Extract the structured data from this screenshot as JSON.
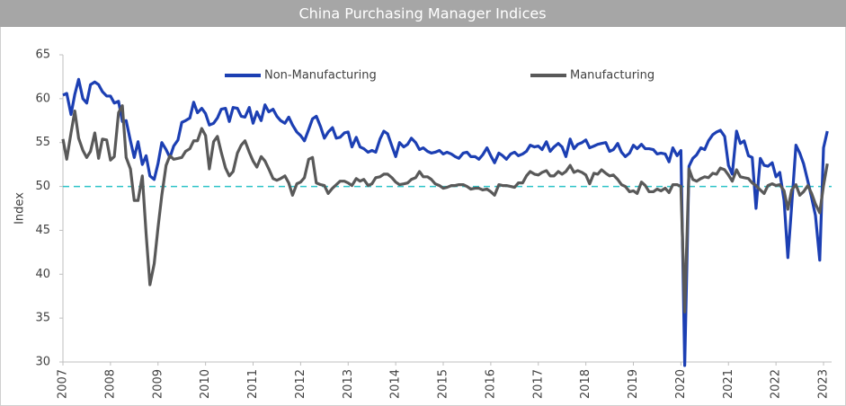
{
  "chart_data": {
    "type": "line",
    "title": "China Purchasing Manager Indices",
    "y_label": "Index",
    "xlim": [
      2007,
      2023.17
    ],
    "xticks": [
      2007,
      2008,
      2009,
      2010,
      2011,
      2012,
      2013,
      2014,
      2015,
      2016,
      2017,
      2018,
      2019,
      2020,
      2021,
      2022,
      2023
    ],
    "ylim": [
      30,
      65
    ],
    "yticks": [
      30,
      35,
      40,
      45,
      50,
      55,
      60,
      65
    ],
    "grid": false,
    "legend": "top",
    "reference_line": {
      "value": 50,
      "color": "#2ec4c8"
    },
    "x": [
      2007,
      2007.08,
      2007.17,
      2007.25,
      2007.33,
      2007.42,
      2007.5,
      2007.58,
      2007.67,
      2007.75,
      2007.83,
      2007.92,
      2008,
      2008.08,
      2008.17,
      2008.25,
      2008.33,
      2008.42,
      2008.5,
      2008.58,
      2008.67,
      2008.75,
      2008.83,
      2008.92,
      2009,
      2009.08,
      2009.17,
      2009.25,
      2009.33,
      2009.42,
      2009.5,
      2009.58,
      2009.67,
      2009.75,
      2009.83,
      2009.92,
      2010,
      2010.08,
      2010.17,
      2010.25,
      2010.33,
      2010.42,
      2010.5,
      2010.58,
      2010.67,
      2010.75,
      2010.83,
      2010.92,
      2011,
      2011.08,
      2011.17,
      2011.25,
      2011.33,
      2011.42,
      2011.5,
      2011.58,
      2011.67,
      2011.75,
      2011.83,
      2011.92,
      2012,
      2012.08,
      2012.17,
      2012.25,
      2012.33,
      2012.42,
      2012.5,
      2012.58,
      2012.67,
      2012.75,
      2012.83,
      2012.92,
      2013,
      2013.08,
      2013.17,
      2013.25,
      2013.33,
      2013.42,
      2013.5,
      2013.58,
      2013.67,
      2013.75,
      2013.83,
      2013.92,
      2014,
      2014.08,
      2014.17,
      2014.25,
      2014.33,
      2014.42,
      2014.5,
      2014.58,
      2014.67,
      2014.75,
      2014.83,
      2014.92,
      2015,
      2015.08,
      2015.17,
      2015.25,
      2015.33,
      2015.42,
      2015.5,
      2015.58,
      2015.67,
      2015.75,
      2015.83,
      2015.92,
      2016,
      2016.08,
      2016.17,
      2016.25,
      2016.33,
      2016.42,
      2016.5,
      2016.58,
      2016.67,
      2016.75,
      2016.83,
      2016.92,
      2017,
      2017.08,
      2017.17,
      2017.25,
      2017.33,
      2017.42,
      2017.5,
      2017.58,
      2017.67,
      2017.75,
      2017.83,
      2017.92,
      2018,
      2018.08,
      2018.17,
      2018.25,
      2018.33,
      2018.42,
      2018.5,
      2018.58,
      2018.67,
      2018.75,
      2018.83,
      2018.92,
      2019,
      2019.08,
      2019.17,
      2019.25,
      2019.33,
      2019.42,
      2019.5,
      2019.58,
      2019.67,
      2019.75,
      2019.83,
      2019.92,
      2020,
      2020.08,
      2020.17,
      2020.25,
      2020.33,
      2020.42,
      2020.5,
      2020.58,
      2020.67,
      2020.75,
      2020.83,
      2020.92,
      2021,
      2021.08,
      2021.17,
      2021.25,
      2021.33,
      2021.42,
      2021.5,
      2021.58,
      2021.67,
      2021.75,
      2021.83,
      2021.92,
      2022,
      2022.08,
      2022.17,
      2022.25,
      2022.33,
      2022.42,
      2022.5,
      2022.58,
      2022.67,
      2022.75,
      2022.83,
      2022.92,
      2023,
      2023.08
    ],
    "series": [
      {
        "name": "Non-Manufacturing",
        "color": "#1c3fb3",
        "values": [
          60.4,
          60.6,
          58.2,
          60.5,
          62.2,
          60.0,
          59.5,
          61.6,
          61.9,
          61.6,
          60.8,
          60.3,
          60.3,
          59.5,
          59.7,
          57.4,
          57.5,
          55.2,
          53.3,
          55.1,
          52.5,
          53.5,
          51.2,
          50.8,
          52.6,
          55.0,
          54.2,
          53.3,
          54.6,
          55.3,
          57.3,
          57.5,
          57.8,
          59.6,
          58.4,
          58.9,
          58.3,
          57.0,
          57.2,
          57.8,
          58.8,
          58.9,
          57.4,
          59.0,
          58.9,
          58.0,
          57.9,
          59.0,
          57.2,
          58.5,
          57.5,
          59.3,
          58.5,
          58.8,
          58.0,
          57.5,
          57.2,
          57.9,
          57.0,
          56.2,
          55.8,
          55.2,
          56.5,
          57.7,
          58.0,
          56.8,
          55.5,
          56.2,
          56.7,
          55.5,
          55.6,
          56.1,
          56.2,
          54.5,
          55.6,
          54.5,
          54.3,
          53.9,
          54.1,
          53.9,
          55.4,
          56.3,
          56.0,
          54.6,
          53.4,
          55.0,
          54.5,
          54.8,
          55.5,
          55.0,
          54.2,
          54.4,
          54.0,
          53.8,
          53.9,
          54.1,
          53.7,
          53.9,
          53.7,
          53.4,
          53.2,
          53.8,
          53.9,
          53.4,
          53.4,
          53.1,
          53.6,
          54.4,
          53.5,
          52.7,
          53.8,
          53.5,
          53.1,
          53.7,
          53.9,
          53.5,
          53.7,
          54.0,
          54.7,
          54.5,
          54.6,
          54.2,
          55.1,
          54.0,
          54.5,
          54.9,
          54.5,
          53.4,
          55.4,
          54.3,
          54.8,
          55.0,
          55.3,
          54.4,
          54.6,
          54.8,
          54.9,
          55.0,
          54.0,
          54.2,
          54.9,
          53.9,
          53.4,
          53.8,
          54.7,
          54.3,
          54.8,
          54.3,
          54.3,
          54.2,
          53.7,
          53.8,
          53.7,
          52.8,
          54.4,
          53.5,
          54.1,
          29.6,
          52.3,
          53.2,
          53.6,
          54.4,
          54.2,
          55.2,
          55.9,
          56.2,
          56.4,
          55.7,
          52.4,
          51.4,
          56.3,
          54.9,
          55.2,
          53.5,
          53.3,
          47.5,
          53.2,
          52.4,
          52.3,
          52.7,
          51.1,
          51.6,
          48.4,
          41.9,
          47.8,
          54.7,
          53.8,
          52.6,
          50.6,
          48.7,
          46.7,
          41.6,
          54.4,
          56.3
        ]
      },
      {
        "name": "Manufacturing",
        "color": "#595959",
        "values": [
          55.4,
          53.1,
          56.1,
          58.6,
          55.5,
          54.1,
          53.3,
          54.0,
          56.1,
          53.2,
          55.4,
          55.3,
          53.0,
          53.4,
          58.4,
          59.2,
          53.3,
          52.0,
          48.4,
          48.4,
          51.2,
          44.6,
          38.8,
          41.2,
          45.3,
          49.0,
          52.4,
          53.5,
          53.1,
          53.2,
          53.3,
          54.0,
          54.3,
          55.2,
          55.2,
          56.6,
          55.8,
          52.0,
          55.1,
          55.7,
          53.9,
          52.1,
          51.2,
          51.7,
          53.8,
          54.7,
          55.2,
          53.9,
          52.9,
          52.2,
          53.4,
          52.9,
          52.0,
          50.9,
          50.7,
          50.9,
          51.2,
          50.4,
          49.0,
          50.3,
          50.5,
          51.0,
          53.1,
          53.3,
          50.4,
          50.2,
          50.1,
          49.2,
          49.8,
          50.2,
          50.6,
          50.6,
          50.4,
          50.1,
          50.9,
          50.6,
          50.8,
          50.1,
          50.3,
          51.0,
          51.1,
          51.4,
          51.4,
          51.0,
          50.5,
          50.2,
          50.3,
          50.4,
          50.8,
          51.0,
          51.7,
          51.1,
          51.1,
          50.8,
          50.3,
          50.1,
          49.8,
          49.9,
          50.1,
          50.1,
          50.2,
          50.2,
          50.0,
          49.7,
          49.8,
          49.8,
          49.6,
          49.7,
          49.4,
          49.0,
          50.2,
          50.1,
          50.1,
          50.0,
          49.9,
          50.4,
          50.4,
          51.2,
          51.7,
          51.4,
          51.3,
          51.6,
          51.8,
          51.2,
          51.2,
          51.7,
          51.4,
          51.7,
          52.4,
          51.6,
          51.8,
          51.6,
          51.3,
          50.3,
          51.5,
          51.4,
          51.9,
          51.5,
          51.2,
          51.3,
          50.8,
          50.2,
          50.0,
          49.4,
          49.5,
          49.2,
          50.5,
          50.1,
          49.4,
          49.4,
          49.7,
          49.5,
          49.8,
          49.3,
          50.2,
          50.2,
          50.0,
          35.7,
          52.0,
          50.8,
          50.6,
          50.9,
          51.1,
          51.0,
          51.5,
          51.4,
          52.1,
          51.9,
          51.3,
          50.6,
          51.9,
          51.1,
          51.0,
          50.9,
          50.4,
          50.1,
          49.6,
          49.2,
          50.1,
          50.3,
          50.1,
          50.2,
          49.5,
          47.4,
          49.6,
          50.2,
          49.0,
          49.4,
          50.1,
          49.2,
          48.0,
          47.0,
          50.1,
          52.6
        ]
      }
    ]
  }
}
